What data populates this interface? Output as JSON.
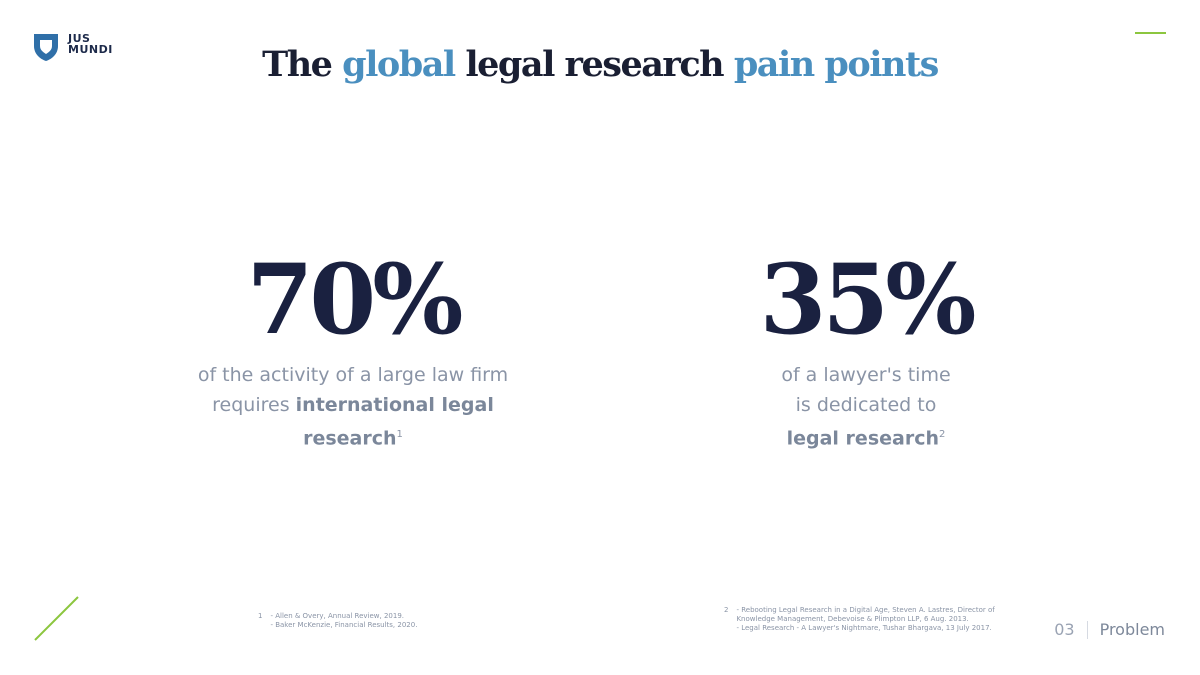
{
  "logo": {
    "lines": [
      "JUS",
      "MUNDI"
    ]
  },
  "title": {
    "parts": [
      "The",
      "global",
      "legal research",
      "pain points"
    ]
  },
  "stats": [
    {
      "value": "70%",
      "text": "of the activity of a large law firm requires",
      "bold": "international legal research",
      "note": "1"
    },
    {
      "value": "35%",
      "text": "of a lawyer's time is dedicated to",
      "bold": "legal research",
      "note": "2"
    }
  ],
  "footnotes": [
    {
      "number": "1",
      "lines": [
        "- Allen & Overy, Annual Review, 2019.",
        "- Baker McKenzie, Financial Results, 2020."
      ]
    },
    {
      "number": "2",
      "lines": [
        "- Rebooting Legal Research in a Digital Age, Steven A. Lastres, Director of",
        "Knowledge Management, Debevoise & Plimpton LLP, 6 Aug. 2013.",
        "- Legal Research - A Lawyer's Nightmare, Tushar Bhargava, 13 July 2017."
      ]
    }
  ],
  "footer": {
    "page": "03",
    "section": "Problem"
  }
}
